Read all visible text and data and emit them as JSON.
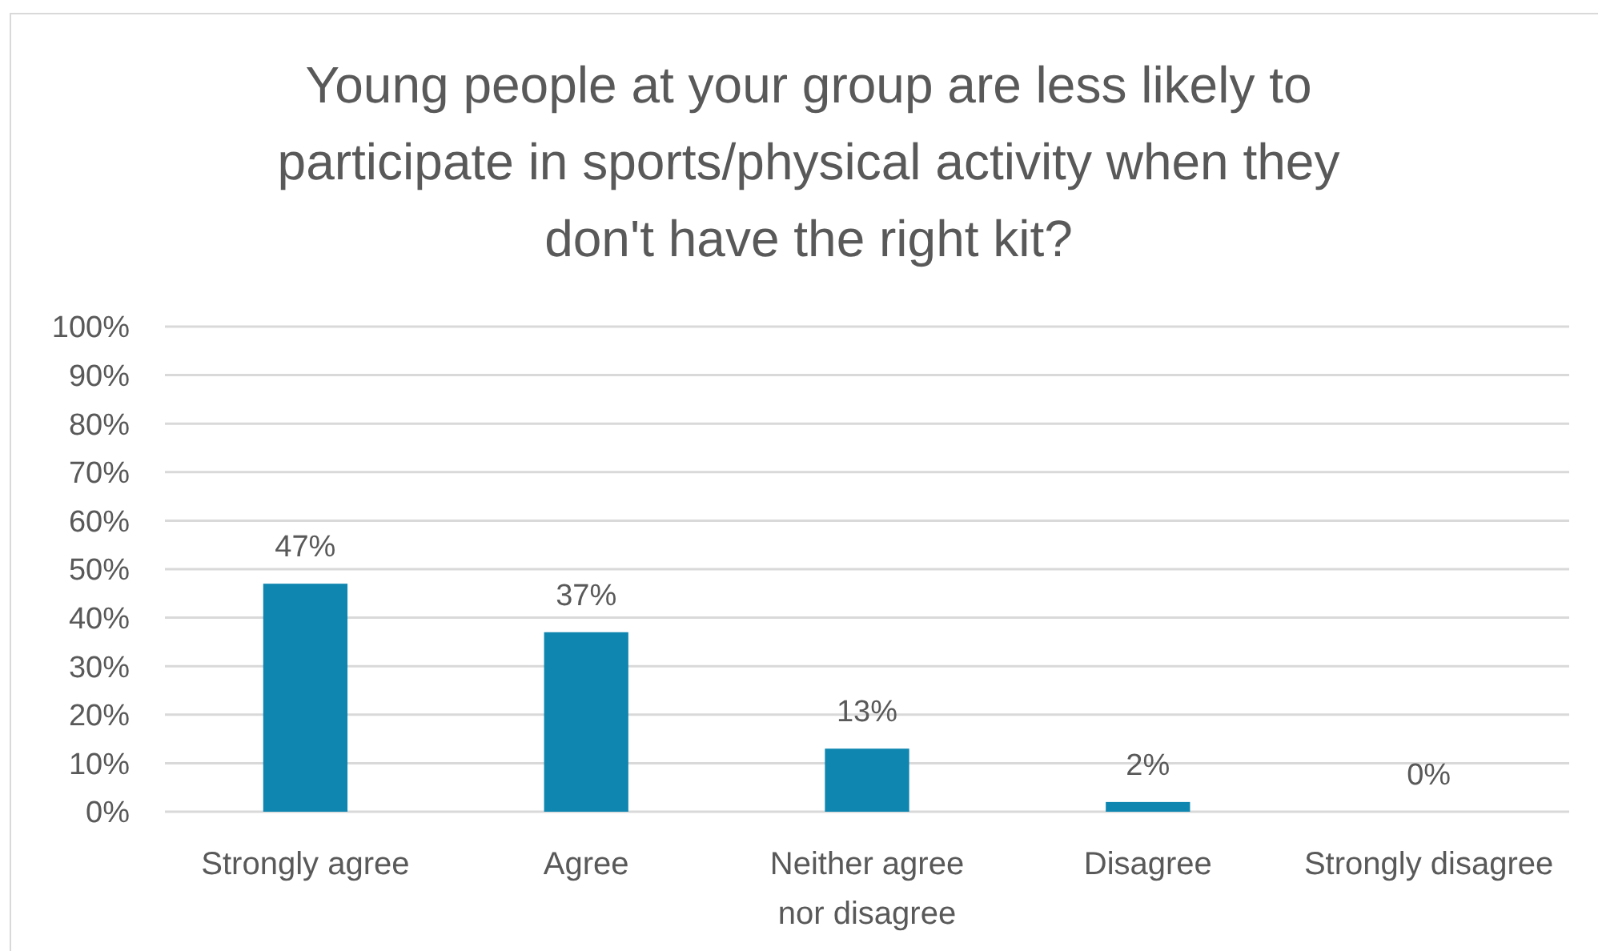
{
  "chart_data": {
    "type": "bar",
    "title": "Young people at your group are less likely to participate in sports/physical activity when they don't have the right kit?",
    "categories": [
      "Strongly agree",
      "Agree",
      "Neither agree nor disagree",
      "Disagree",
      "Strongly disagree"
    ],
    "values": [
      47,
      37,
      13,
      2,
      0
    ],
    "color": "#0e86b0",
    "value_labels": [
      "47%",
      "37%",
      "13%",
      "2%",
      "0%"
    ],
    "ylim": [
      0,
      100
    ],
    "yticks": [
      {
        "value": 0,
        "label": "0%"
      },
      {
        "value": 10,
        "label": "10%"
      },
      {
        "value": 20,
        "label": "20%"
      },
      {
        "value": 30,
        "label": "30%"
      },
      {
        "value": 40,
        "label": "40%"
      },
      {
        "value": 50,
        "label": "50%"
      },
      {
        "value": 60,
        "label": "60%"
      },
      {
        "value": 70,
        "label": "70%"
      },
      {
        "value": 80,
        "label": "80%"
      },
      {
        "value": 90,
        "label": "90%"
      },
      {
        "value": 100,
        "label": "100%"
      }
    ],
    "grid": "y"
  }
}
